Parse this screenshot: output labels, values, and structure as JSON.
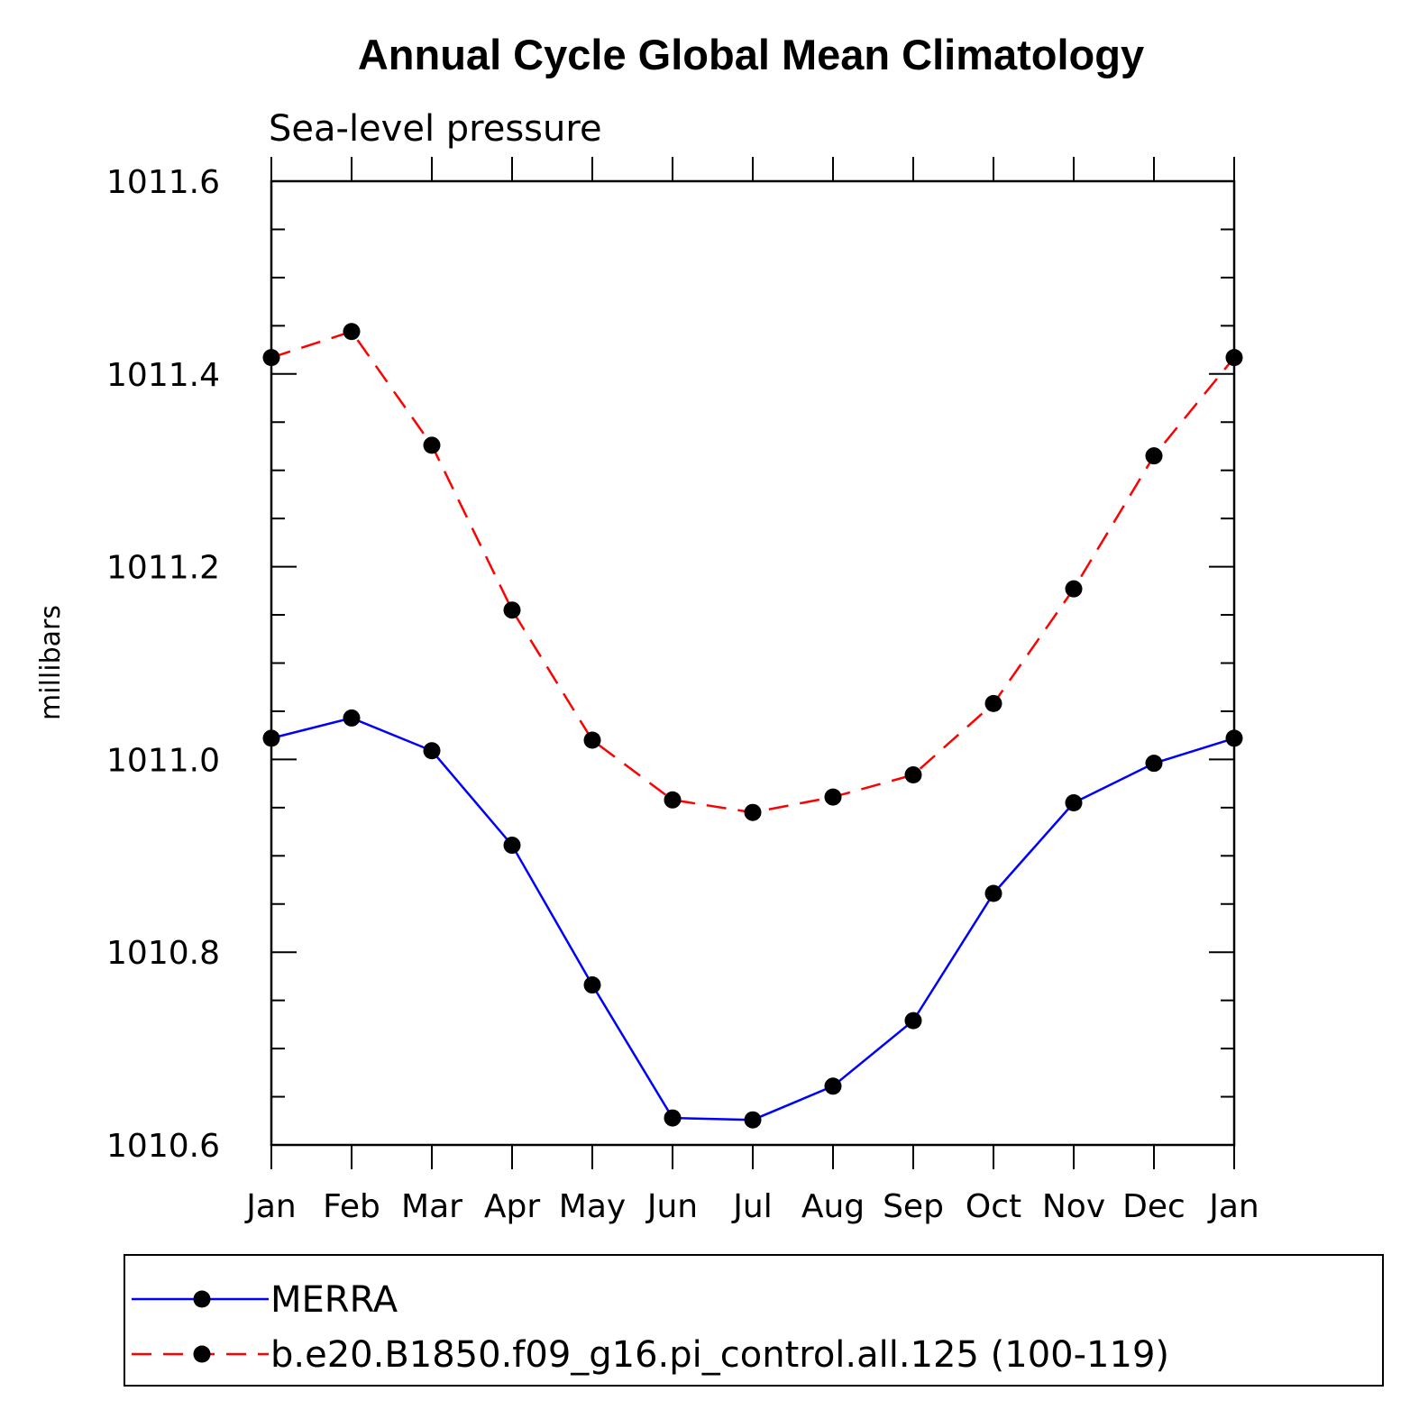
{
  "chart_data": {
    "type": "line",
    "title": "Annual Cycle Global Mean Climatology",
    "subtitle": "Sea-level pressure",
    "ylabel": "millibars",
    "xlabel": "",
    "categories": [
      "Jan",
      "Feb",
      "Mar",
      "Apr",
      "May",
      "Jun",
      "Jul",
      "Aug",
      "Sep",
      "Oct",
      "Nov",
      "Dec",
      "Jan"
    ],
    "ylim": [
      1010.6,
      1011.6
    ],
    "yticks": [
      1010.6,
      1010.8,
      1011.0,
      1011.2,
      1011.4,
      1011.6
    ],
    "ytick_labels": [
      "1010.6",
      "1010.8",
      "1011.0",
      "1011.2",
      "1011.4",
      "1011.6"
    ],
    "grid": false,
    "legend_position": "bottom",
    "series": [
      {
        "name": "MERRA",
        "color": "#0000ff",
        "dash": "solid",
        "marker": "filled-circle",
        "values": [
          1011.022,
          1011.043,
          1011.009,
          1010.911,
          1010.766,
          1010.628,
          1010.626,
          1010.661,
          1010.729,
          1010.861,
          1010.955,
          1010.996,
          1011.022
        ]
      },
      {
        "name": "b.e20.B1850.f09_g16.pi_control.all.125 (100-119)",
        "color": "#ff0000",
        "dash": "dashed",
        "marker": "filled-circle",
        "values": [
          1011.417,
          1011.444,
          1011.326,
          1011.155,
          1011.02,
          1010.958,
          1010.945,
          1010.961,
          1010.984,
          1011.058,
          1011.177,
          1011.315,
          1011.417
        ]
      }
    ]
  }
}
